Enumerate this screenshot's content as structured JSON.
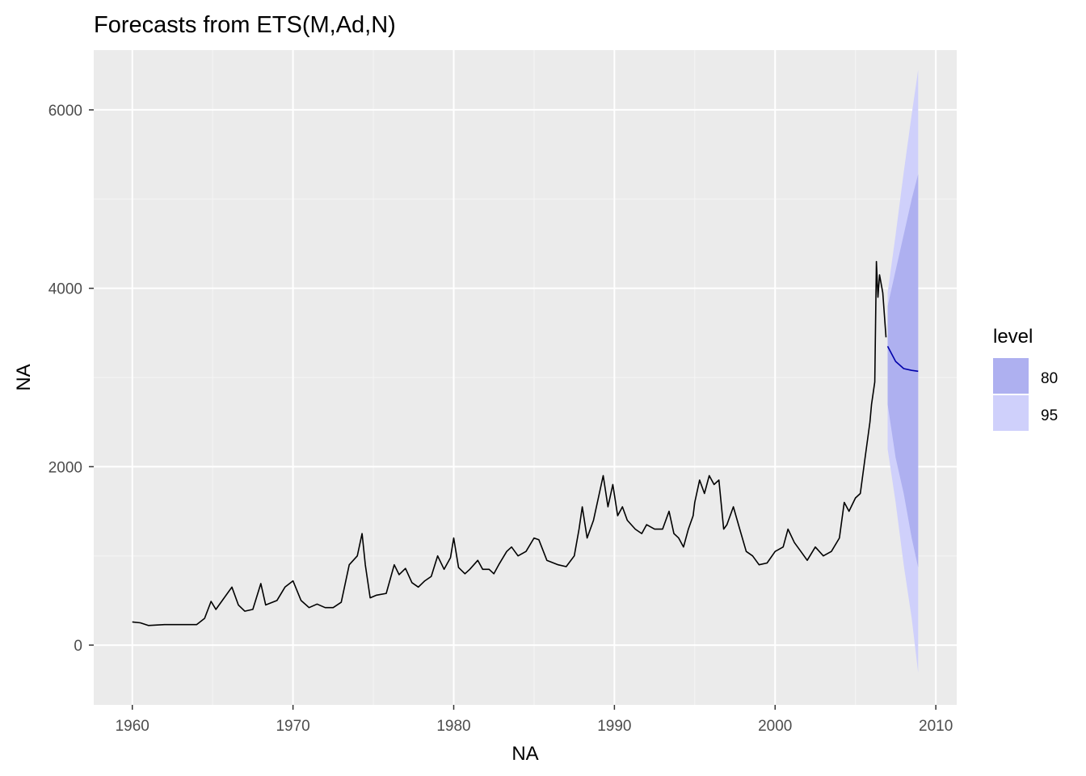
{
  "chart_data": {
    "type": "line",
    "title": "Forecasts from ETS(M,Ad,N)",
    "xlabel": "NA",
    "ylabel": "NA",
    "xlim": [
      1957.6,
      2011.3
    ],
    "ylim": [
      -670,
      6670
    ],
    "x_ticks": [
      1960,
      1970,
      1980,
      1990,
      2000,
      2010
    ],
    "x_tick_labels": [
      "1960",
      "1970",
      "1980",
      "1990",
      "2000",
      "2010"
    ],
    "y_ticks": [
      0,
      2000,
      4000,
      6000
    ],
    "y_tick_labels": [
      "0",
      "2000",
      "4000",
      "6000"
    ],
    "grid": true,
    "legend": {
      "position": "right",
      "title": "level",
      "items": [
        {
          "label": "80",
          "color": "#aeb0f0"
        },
        {
          "label": "95",
          "color": "#cfd0fb"
        }
      ]
    },
    "colors": {
      "panel": "#ebebeb",
      "grid_major": "#ffffff",
      "grid_minor": "#f5f5f5",
      "history": "#000000",
      "forecast": "#0000aa",
      "band80": "#aeb0f0",
      "band95": "#cfd0fb"
    },
    "series": [
      {
        "kind": "history",
        "x": [
          1960.0,
          1960.5,
          1961.0,
          1962.0,
          1963.0,
          1964.0,
          1964.5,
          1964.9,
          1965.2,
          1965.6,
          1966.2,
          1966.6,
          1967.0,
          1967.5,
          1968.0,
          1968.3,
          1969.0,
          1969.5,
          1970.0,
          1970.5,
          1971.0,
          1971.5,
          1972.0,
          1972.5,
          1973.0,
          1973.5,
          1974.0,
          1974.3,
          1974.5,
          1974.8,
          1975.2,
          1975.8,
          1976.3,
          1976.6,
          1977.0,
          1977.4,
          1977.8,
          1978.2,
          1978.6,
          1979.0,
          1979.4,
          1979.8,
          1980.0,
          1980.3,
          1980.7,
          1981.0,
          1981.5,
          1981.8,
          1982.2,
          1982.5,
          1982.8,
          1983.3,
          1983.6,
          1984.0,
          1984.5,
          1985.0,
          1985.3,
          1985.8,
          1986.5,
          1987.0,
          1987.5,
          1987.8,
          1988.0,
          1988.3,
          1988.7,
          1989.0,
          1989.3,
          1989.6,
          1989.9,
          1990.2,
          1990.5,
          1990.8,
          1991.3,
          1991.7,
          1992.0,
          1992.5,
          1993.0,
          1993.4,
          1993.7,
          1994.0,
          1994.3,
          1994.6,
          1994.9,
          1995.0,
          1995.3,
          1995.6,
          1995.9,
          1996.2,
          1996.5,
          1996.8,
          1997.0,
          1997.4,
          1997.8,
          1998.2,
          1998.6,
          1999.0,
          1999.5,
          2000.0,
          2000.5,
          2000.8,
          2001.2,
          2001.6,
          2002.0,
          2002.5,
          2003.0,
          2003.5,
          2004.0,
          2004.3,
          2004.6,
          2005.0,
          2005.3,
          2005.6,
          2005.9,
          2006.0,
          2006.2,
          2006.3,
          2006.4,
          2006.5,
          2006.7,
          2006.9
        ],
        "y": [
          260,
          250,
          220,
          230,
          230,
          230,
          300,
          490,
          400,
          500,
          650,
          450,
          380,
          400,
          690,
          450,
          500,
          650,
          720,
          500,
          420,
          460,
          420,
          420,
          480,
          900,
          1000,
          1250,
          900,
          530,
          560,
          580,
          900,
          790,
          860,
          700,
          650,
          720,
          770,
          1000,
          850,
          980,
          1200,
          870,
          800,
          850,
          950,
          850,
          850,
          800,
          900,
          1050,
          1100,
          1000,
          1050,
          1200,
          1180,
          950,
          900,
          880,
          1000,
          1300,
          1550,
          1200,
          1400,
          1650,
          1900,
          1550,
          1800,
          1450,
          1550,
          1400,
          1300,
          1250,
          1350,
          1300,
          1300,
          1500,
          1250,
          1200,
          1100,
          1300,
          1450,
          1600,
          1850,
          1700,
          1900,
          1800,
          1850,
          1300,
          1350,
          1550,
          1300,
          1050,
          1000,
          900,
          920,
          1050,
          1100,
          1300,
          1150,
          1050,
          950,
          1100,
          1000,
          1050,
          1200,
          1600,
          1500,
          1650,
          1700,
          2100,
          2500,
          2700,
          2950,
          4300,
          3900,
          4150,
          3950,
          3450
        ]
      },
      {
        "kind": "forecast",
        "x": [
          2007.0,
          2007.5,
          2008.0,
          2008.5,
          2008.9
        ],
        "y": [
          3350,
          3180,
          3100,
          3080,
          3070
        ]
      }
    ],
    "bands": [
      {
        "level": "95",
        "x": [
          2007.0,
          2007.5,
          2008.0,
          2008.5,
          2008.9
        ],
        "lower": [
          2200,
          1600,
          900,
          300,
          -310
        ],
        "upper": [
          3950,
          4600,
          5300,
          5950,
          6450
        ]
      },
      {
        "level": "80",
        "x": [
          2007.0,
          2007.5,
          2008.0,
          2008.5,
          2008.9
        ],
        "lower": [
          2700,
          2100,
          1700,
          1200,
          870
        ],
        "upper": [
          3800,
          4200,
          4600,
          5000,
          5280
        ]
      }
    ]
  }
}
